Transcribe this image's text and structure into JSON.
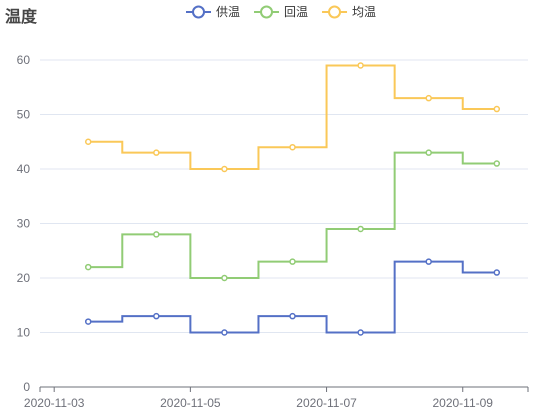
{
  "chart_data": {
    "type": "line",
    "step": "middle",
    "ylabel": "温度",
    "xlabel": "",
    "title": "",
    "ylim": [
      0,
      60
    ],
    "y_ticks": [
      0,
      10,
      20,
      30,
      40,
      50,
      60
    ],
    "x_tick_labels": [
      "2020-11-03",
      "2020-11-05",
      "2020-11-07",
      "2020-11-09"
    ],
    "grid": true,
    "legend_position": "top-center",
    "x": [
      "2020-11-03 12:00",
      "2020-11-04 12:00",
      "2020-11-05 12:00",
      "2020-11-06 12:00",
      "2020-11-07 12:00",
      "2020-11-08 12:00",
      "2020-11-09 12:00"
    ],
    "series": [
      {
        "name": "供温",
        "color": "#5470c6",
        "values": [
          12,
          13,
          10,
          13,
          10,
          23,
          21
        ]
      },
      {
        "name": "回温",
        "color": "#91cc75",
        "values": [
          22,
          28,
          20,
          23,
          29,
          43,
          41
        ]
      },
      {
        "name": "均温",
        "color": "#fac858",
        "values": [
          45,
          43,
          40,
          44,
          59,
          53,
          51
        ]
      }
    ]
  }
}
